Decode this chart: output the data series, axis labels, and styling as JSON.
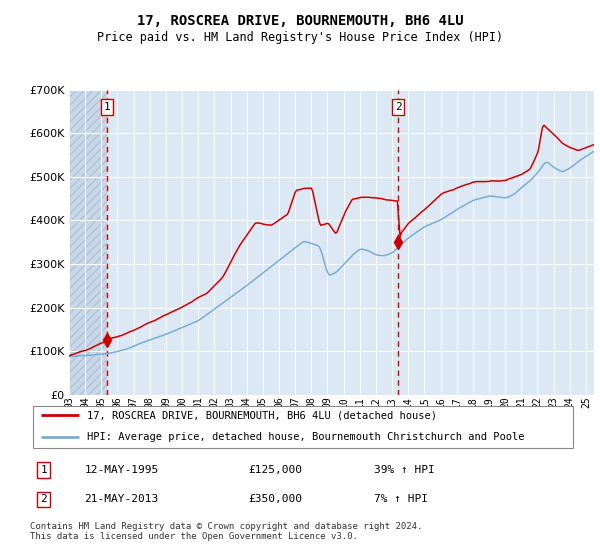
{
  "title": "17, ROSCREA DRIVE, BOURNEMOUTH, BH6 4LU",
  "subtitle": "Price paid vs. HM Land Registry's House Price Index (HPI)",
  "legend_line1": "17, ROSCREA DRIVE, BOURNEMOUTH, BH6 4LU (detached house)",
  "legend_line2": "HPI: Average price, detached house, Bournemouth Christchurch and Poole",
  "purchase1_date": "12-MAY-1995",
  "purchase1_price": 125000,
  "purchase1_hpi": "39% ↑ HPI",
  "purchase2_date": "21-MAY-2013",
  "purchase2_price": 350000,
  "purchase2_hpi": "7% ↑ HPI",
  "footnote": "Contains HM Land Registry data © Crown copyright and database right 2024.\nThis data is licensed under the Open Government Licence v3.0.",
  "hpi_color": "#7aaed4",
  "price_color": "#cc0000",
  "purchase_marker_color": "#cc0000",
  "vline_color": "#cc0000",
  "bg_color": "#dce9f5",
  "hatch_bg_color": "#c8d8e8",
  "grid_color": "#ffffff",
  "ylim": [
    0,
    700000
  ],
  "yticks": [
    0,
    100000,
    200000,
    300000,
    400000,
    500000,
    600000,
    700000
  ],
  "start_year": 1993.0,
  "end_year": 2025.5,
  "purchase1_year": 1995.37,
  "purchase2_year": 2013.38
}
